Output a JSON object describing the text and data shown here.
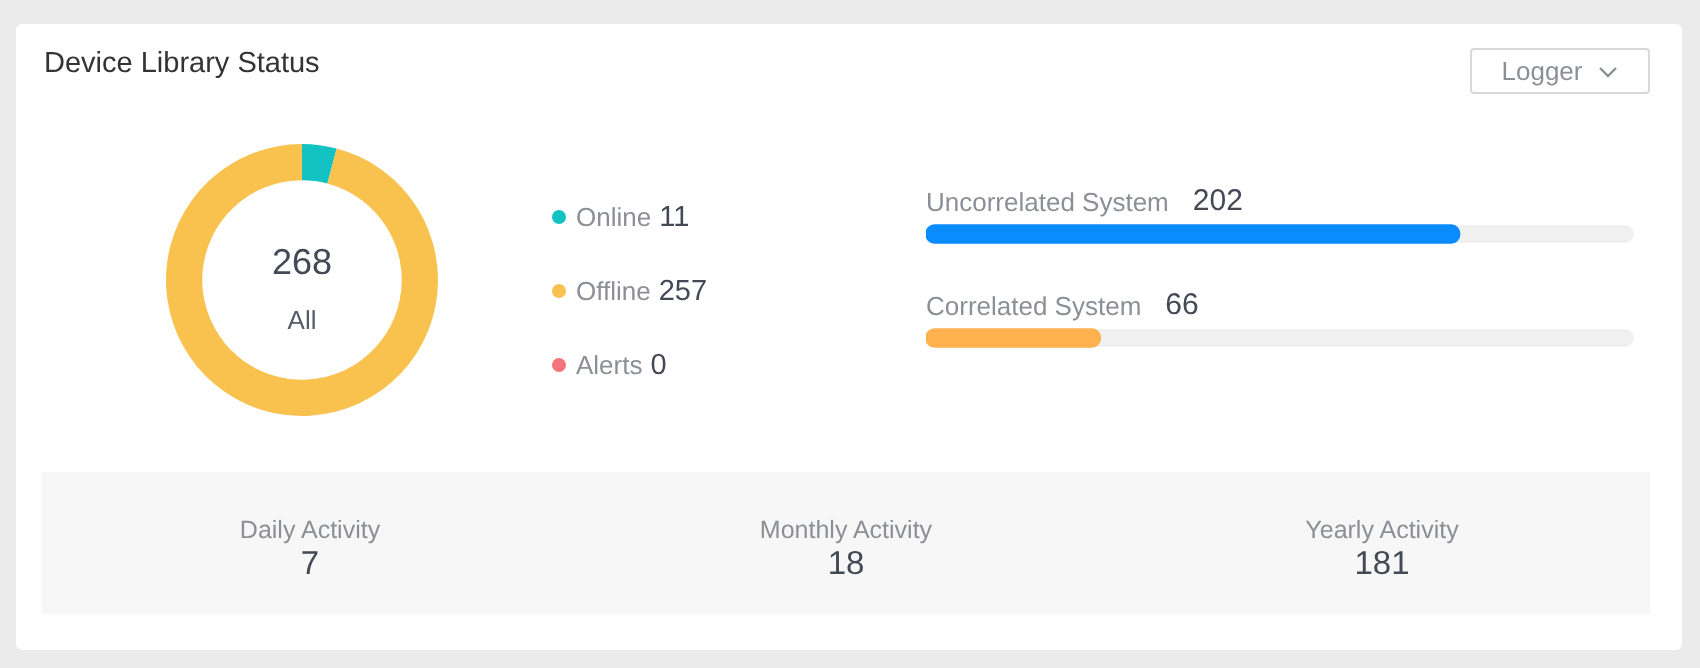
{
  "chart_data": [
    {
      "type": "donut",
      "title": "Device Library Status",
      "categories": [
        "Online",
        "Offline",
        "Alerts"
      ],
      "values": [
        11,
        257,
        0
      ],
      "colors": [
        "#13c2c2",
        "#f9c24f",
        "#f5737b"
      ],
      "annotations": [
        "268",
        "All"
      ],
      "legend": "right",
      "value_labels": [
        "11",
        "257",
        "0"
      ]
    },
    {
      "type": "bar",
      "orientation": "horizontal",
      "categories": [
        "Uncorrelated System",
        "Correlated System"
      ],
      "values": [
        202,
        66
      ],
      "colors": [
        "#0a8cff",
        "#ffb14e"
      ],
      "xlim": [
        0,
        268
      ],
      "data_labels": true,
      "tick_labels": false,
      "annotations": [
        "Logger"
      ]
    },
    {
      "type": "other",
      "categories": [
        "Daily Activity",
        "Monthly Activity",
        "Yearly Activity"
      ],
      "values": [
        7,
        18,
        181
      ],
      "data_labels": true
    }
  ]
}
